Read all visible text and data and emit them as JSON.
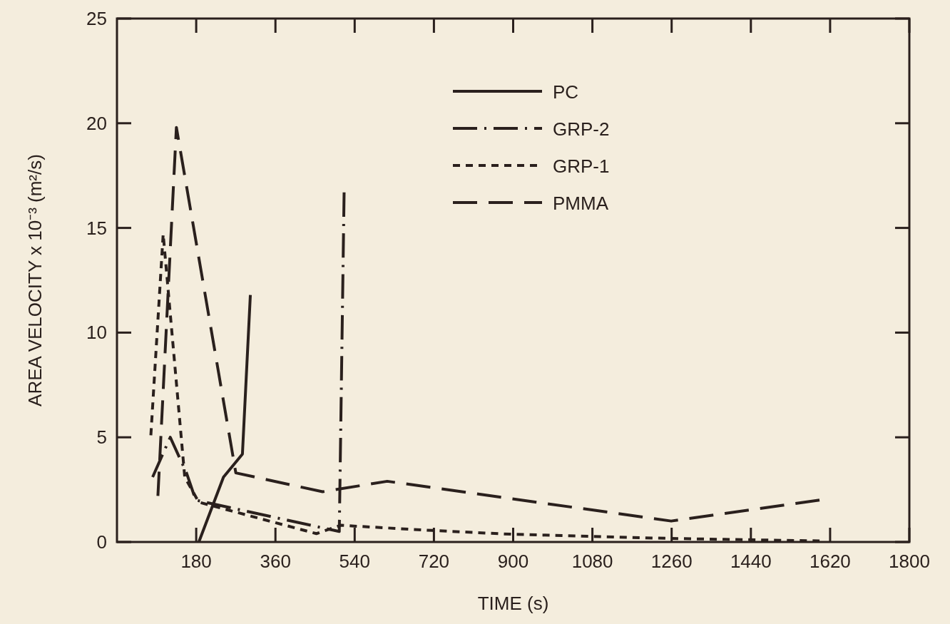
{
  "chart_data": {
    "type": "line",
    "xlabel": "TIME (s)",
    "ylabel": "AREA VELOCITY x 10⁻³ (m²/s)",
    "xlim": [
      0,
      1800
    ],
    "xticks": [
      180,
      360,
      540,
      720,
      900,
      1080,
      1260,
      1440,
      1620,
      1800
    ],
    "ylim": [
      0,
      25
    ],
    "yticks": [
      0,
      5,
      10,
      15,
      20,
      25
    ],
    "grid": false,
    "legend": "top",
    "series": [
      {
        "name": "PC",
        "color": "#2a201d",
        "line_style": "solid",
        "x": [
          186,
          242,
          285,
          303
        ],
        "values": [
          0,
          3.1,
          4.2,
          11.8
        ]
      },
      {
        "name": "GRP-2",
        "color": "#2a201d",
        "line_style": "dashdot",
        "x": [
          81,
          121,
          158,
          179,
          505,
          516
        ],
        "values": [
          3.1,
          5.0,
          3.3,
          2.0,
          0.5,
          16.7
        ]
      },
      {
        "name": "GRP-1",
        "color": "#2a201d",
        "line_style": "dotted",
        "x": [
          77,
          105,
          154,
          186,
          453,
          509,
          539,
          716,
          896,
          1254,
          1596
        ],
        "values": [
          5.1,
          14.7,
          3.1,
          1.9,
          0.4,
          0.8,
          0.76,
          0.55,
          0.37,
          0.17,
          0.05
        ]
      },
      {
        "name": "PMMA",
        "color": "#2a201d",
        "line_style": "dashed",
        "x": [
          93,
          135,
          270,
          467,
          614,
          1259,
          1596
        ],
        "values": [
          2.2,
          19.8,
          3.3,
          2.4,
          2.9,
          1.0,
          2.0
        ]
      }
    ]
  }
}
